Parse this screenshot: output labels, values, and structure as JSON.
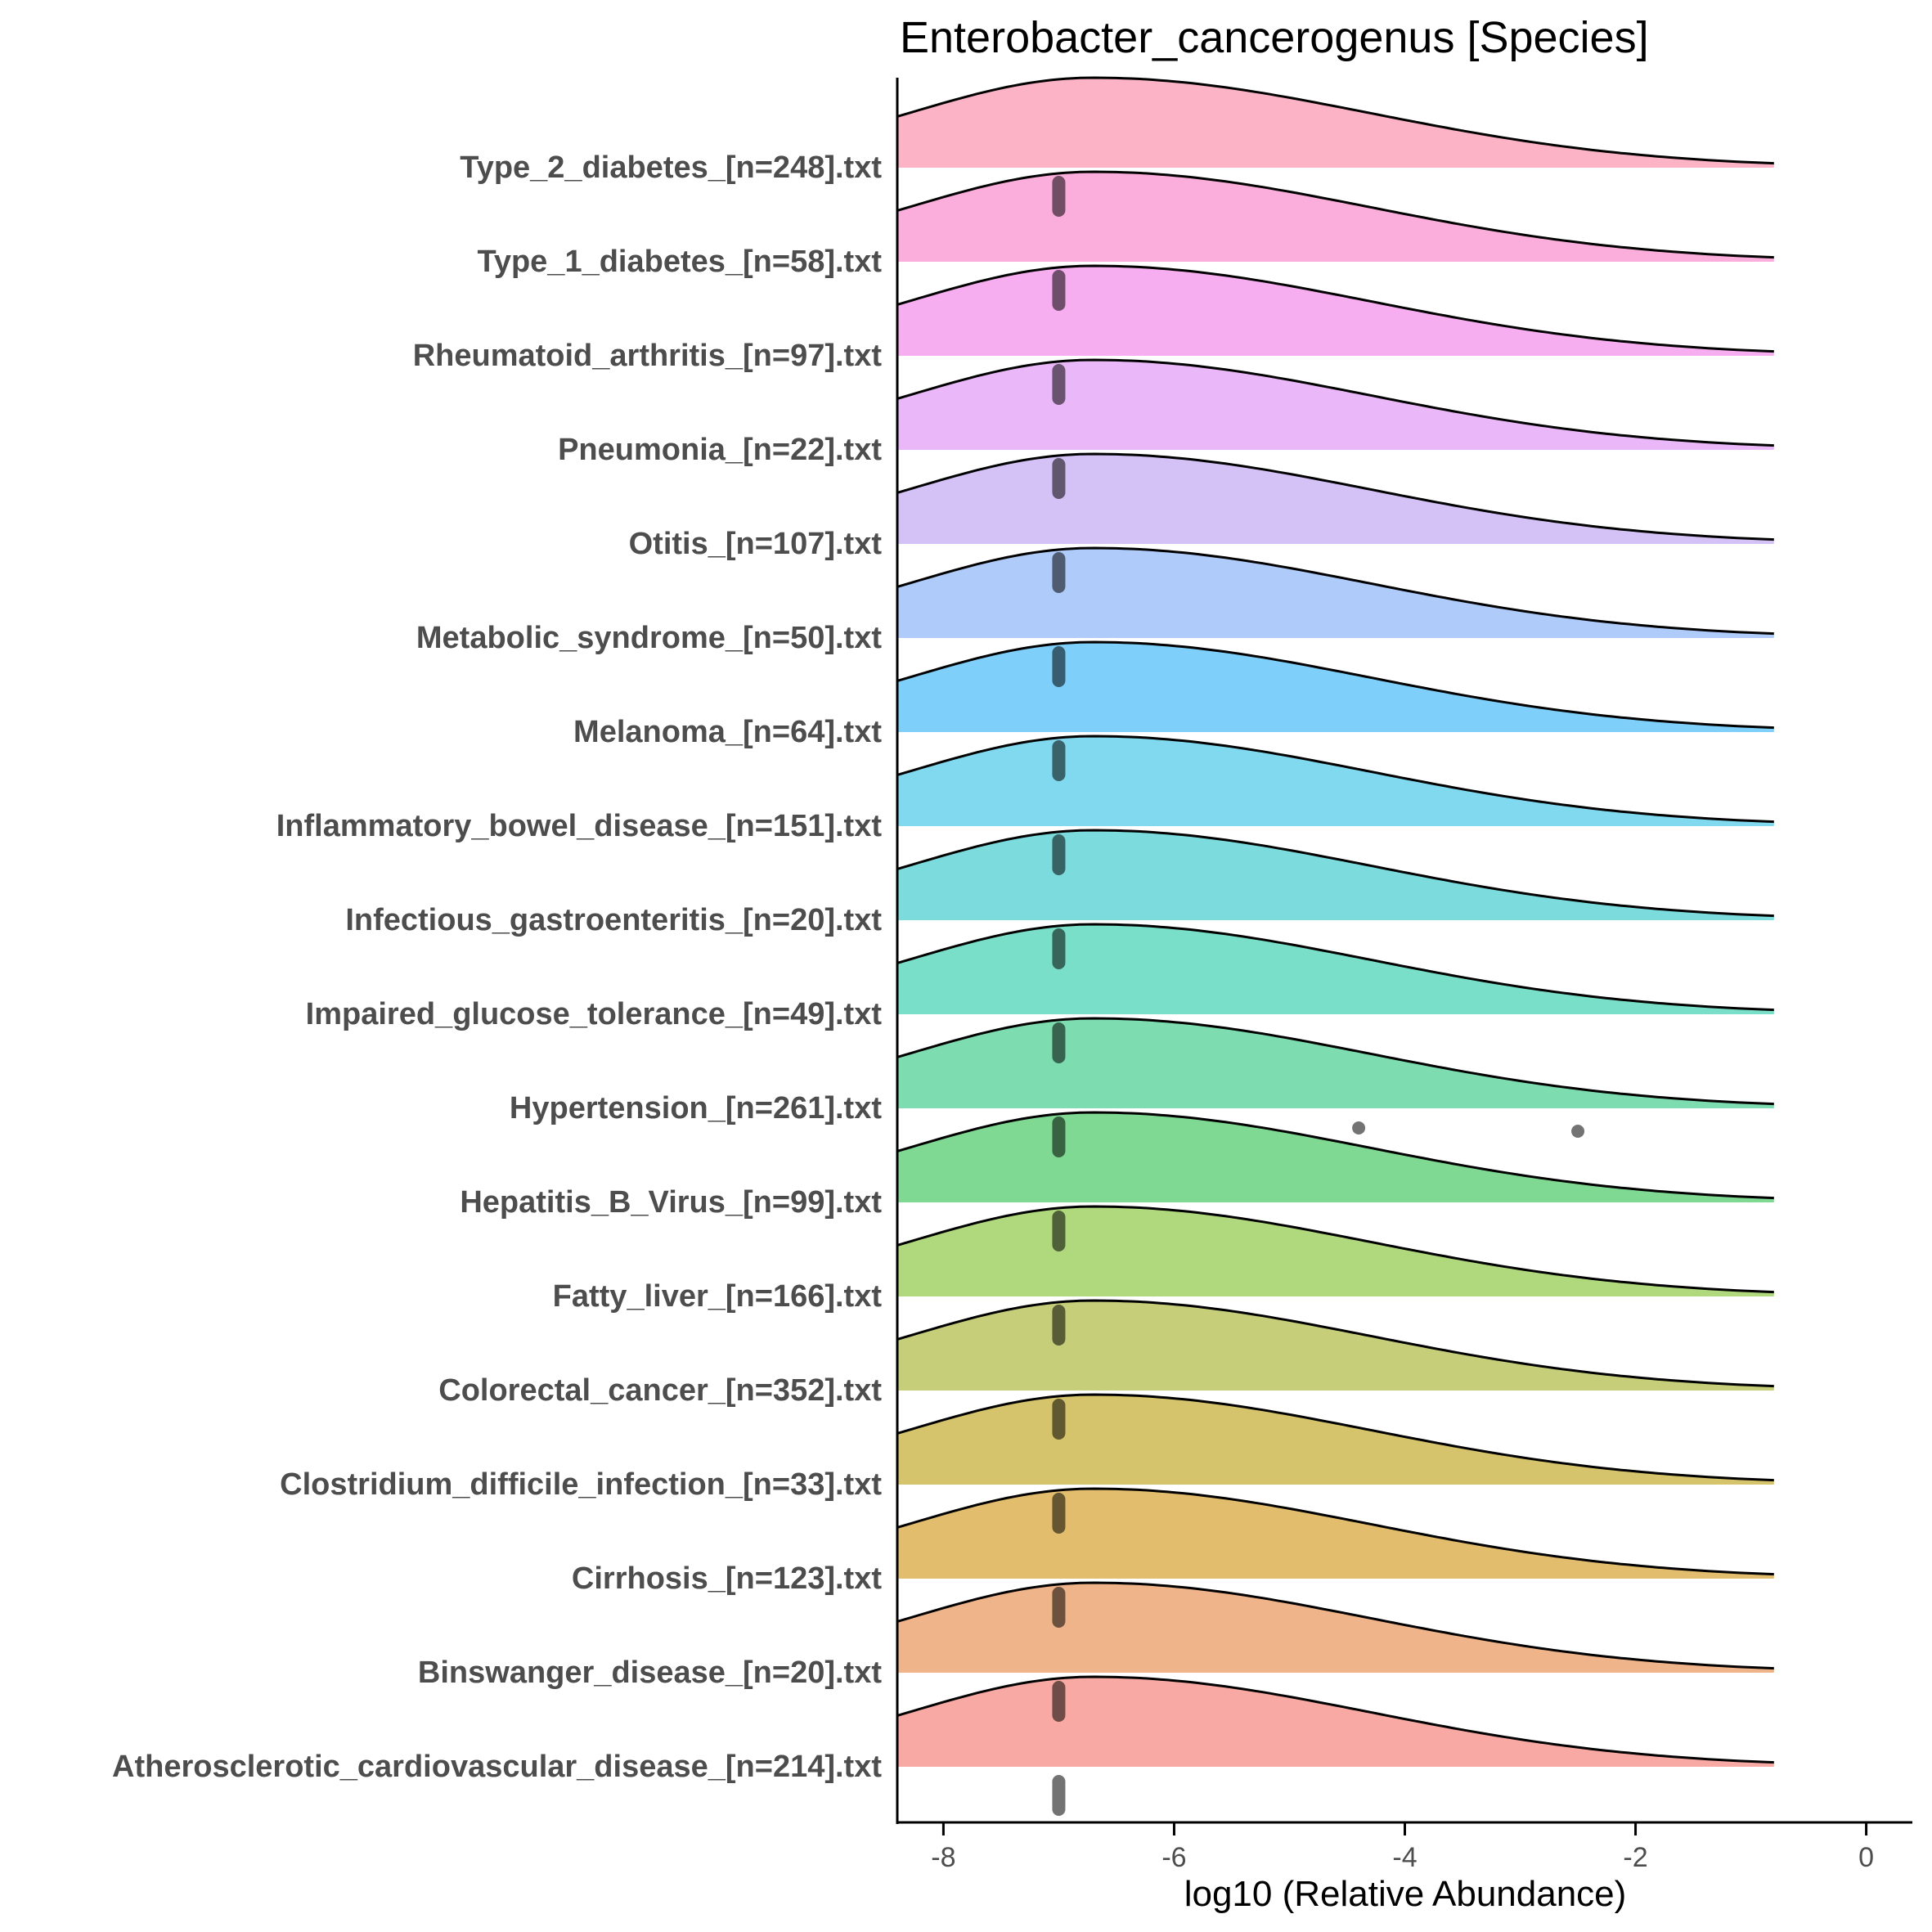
{
  "chart_data": {
    "type": "area",
    "subtype": "ridgeline-density",
    "title": "Enterobacter_cancerogenus [Species]",
    "xlabel": "log10 (Relative Abundance)",
    "ylabel": "",
    "xlim": [
      -8.4,
      0.4
    ],
    "x_ticks": [
      -8,
      -6,
      -4,
      -2,
      0
    ],
    "x_tick_labels": [
      "-8",
      "-6",
      "-4",
      "-2",
      "0"
    ],
    "grid": false,
    "legend": "none",
    "density_peak_x": -6.7,
    "series": [
      {
        "name": "Atherosclerotic_cardiovascular_disease_[n=214].txt",
        "color": "#F8A9A3",
        "points_x": [
          -7.0
        ]
      },
      {
        "name": "Binswanger_disease_[n=20].txt",
        "color": "#EFB48A",
        "points_x": [
          -7.0
        ]
      },
      {
        "name": "Cirrhosis_[n=123].txt",
        "color": "#E3BD6E",
        "points_x": [
          -7.0
        ]
      },
      {
        "name": "Clostridium_difficile_infection_[n=33].txt",
        "color": "#D5C46B",
        "points_x": [
          -7.0
        ]
      },
      {
        "name": "Colorectal_cancer_[n=352].txt",
        "color": "#C6CE7A",
        "points_x": [
          -7.0
        ]
      },
      {
        "name": "Fatty_liver_[n=166].txt",
        "color": "#B0D87D",
        "points_x": [
          -7.0
        ]
      },
      {
        "name": "Hepatitis_B_Virus_[n=99].txt",
        "color": "#7FD993",
        "points_x": [
          -7.0
        ]
      },
      {
        "name": "Hypertension_[n=261].txt",
        "color": "#7DDDB0",
        "points_x": [
          -7.0,
          -4.4,
          -2.5
        ]
      },
      {
        "name": "Impaired_glucose_tolerance_[n=49].txt",
        "color": "#7ADFC8",
        "points_x": [
          -7.0
        ]
      },
      {
        "name": "Infectious_gastroenteritis_[n=20].txt",
        "color": "#7CDCDD",
        "points_x": [
          -7.0
        ]
      },
      {
        "name": "Inflammatory_bowel_disease_[n=151].txt",
        "color": "#80D9EE",
        "points_x": [
          -7.0
        ]
      },
      {
        "name": "Melanoma_[n=64].txt",
        "color": "#7ECFF9",
        "points_x": [
          -7.0
        ]
      },
      {
        "name": "Metabolic_syndrome_[n=50].txt",
        "color": "#AECBFA",
        "points_x": [
          -7.0
        ]
      },
      {
        "name": "Otitis_[n=107].txt",
        "color": "#D4C2F7",
        "points_x": [
          -7.0
        ]
      },
      {
        "name": "Pneumonia_[n=22].txt",
        "color": "#EAB8F8",
        "points_x": [
          -7.0
        ]
      },
      {
        "name": "Rheumatoid_arthritis_[n=97].txt",
        "color": "#F6AEF0",
        "points_x": [
          -7.0
        ]
      },
      {
        "name": "Type_1_diabetes_[n=58].txt",
        "color": "#FBAEDC",
        "points_x": [
          -7.0
        ]
      },
      {
        "name": "Type_2_diabetes_[n=248].txt",
        "color": "#FCB3C6",
        "points_x": [
          -7.0
        ]
      }
    ]
  }
}
